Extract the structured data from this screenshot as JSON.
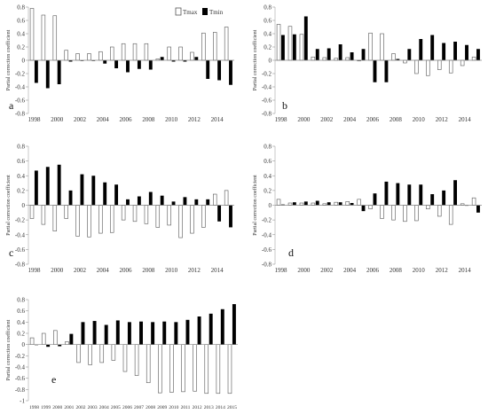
{
  "figure": {
    "legend": {
      "tmax": "Tmax",
      "tmin": "Tmin",
      "tmax_color": "#ffffff",
      "tmin_color": "#000000",
      "edge_color": "#555555"
    }
  },
  "chart_data": [
    {
      "type": "bar",
      "panel_label": "a",
      "ylabel": "Partial correction coefficient",
      "ylim": [
        -0.8,
        0.8
      ],
      "yticks": [
        -0.8,
        -0.6,
        -0.4,
        -0.2,
        0,
        0.2,
        0.4,
        0.6,
        0.8
      ],
      "categories": [
        "1998",
        "1999",
        "2000",
        "2001",
        "2002",
        "2003",
        "2004",
        "2005",
        "2006",
        "2007",
        "2008",
        "2009",
        "2010",
        "2011",
        "2012",
        "2013",
        "2014",
        "2015"
      ],
      "xtick_labels": [
        "1998",
        "",
        "2000",
        "",
        "2002",
        "",
        "2004",
        "",
        "2006",
        "",
        "2008",
        "",
        "2010",
        "",
        "2012",
        "",
        "2014",
        ""
      ],
      "series": [
        {
          "name": "Tmax",
          "values": [
            0.78,
            0.68,
            0.67,
            0.15,
            0.1,
            0.1,
            0.13,
            0.2,
            0.25,
            0.25,
            0.25,
            0.02,
            0.2,
            0.2,
            0.12,
            0.41,
            0.42,
            0.5
          ]
        },
        {
          "name": "Tmin",
          "values": [
            -0.34,
            -0.42,
            -0.36,
            -0.02,
            -0.01,
            -0.01,
            -0.05,
            -0.12,
            -0.18,
            -0.13,
            -0.14,
            0.05,
            -0.02,
            -0.02,
            0.05,
            -0.28,
            -0.3,
            -0.37
          ]
        }
      ]
    },
    {
      "type": "bar",
      "panel_label": "b",
      "ylabel": "Partial correction coefficient",
      "ylim": [
        -0.8,
        0.8
      ],
      "yticks": [
        -0.8,
        -0.6,
        -0.4,
        -0.2,
        0,
        0.2,
        0.4,
        0.6,
        0.8
      ],
      "categories": [
        "1998",
        "1999",
        "2000",
        "2001",
        "2002",
        "2003",
        "2004",
        "2005",
        "2006",
        "2007",
        "2008",
        "2009",
        "2010",
        "2011",
        "2012",
        "2013",
        "2014",
        "2015"
      ],
      "xtick_labels": [
        "1998",
        "",
        "2000",
        "",
        "2002",
        "",
        "2004",
        "",
        "2006",
        "",
        "2008",
        "",
        "2010",
        "",
        "2012",
        "",
        "2014",
        ""
      ],
      "series": [
        {
          "name": "Tmax",
          "values": [
            0.54,
            0.51,
            0.39,
            0.05,
            0.04,
            0.03,
            0.04,
            -0.01,
            0.41,
            0.4,
            0.1,
            -0.04,
            -0.2,
            -0.23,
            -0.14,
            -0.19,
            -0.08,
            0.05
          ]
        },
        {
          "name": "Tmin",
          "values": [
            0.38,
            0.39,
            0.66,
            0.17,
            0.18,
            0.24,
            0.12,
            0.17,
            -0.33,
            -0.33,
            0.02,
            0.17,
            0.32,
            0.38,
            0.26,
            0.28,
            0.23,
            0.17
          ]
        }
      ]
    },
    {
      "type": "bar",
      "panel_label": "c",
      "ylabel": "Partial correction coefficient",
      "ylim": [
        -0.8,
        0.8
      ],
      "yticks": [
        -0.8,
        -0.6,
        -0.4,
        -0.2,
        0,
        0.2,
        0.4,
        0.6,
        0.8
      ],
      "categories": [
        "1998",
        "1999",
        "2000",
        "2001",
        "2002",
        "2003",
        "2004",
        "2005",
        "2006",
        "2007",
        "2008",
        "2009",
        "2010",
        "2011",
        "2012",
        "2013",
        "2014",
        "2015"
      ],
      "xtick_labels": [
        "1998",
        "",
        "2000",
        "",
        "2002",
        "",
        "2004",
        "",
        "2006",
        "",
        "2008",
        "",
        "2010",
        "",
        "2012",
        "",
        "2014",
        ""
      ],
      "series": [
        {
          "name": "Tmax",
          "values": [
            -0.18,
            -0.26,
            -0.35,
            -0.18,
            -0.42,
            -0.43,
            -0.38,
            -0.37,
            -0.2,
            -0.22,
            -0.25,
            -0.3,
            -0.27,
            -0.44,
            -0.38,
            -0.3,
            0.15,
            0.2
          ]
        },
        {
          "name": "Tmin",
          "values": [
            0.47,
            0.52,
            0.55,
            0.2,
            0.42,
            0.4,
            0.31,
            0.28,
            0.08,
            0.12,
            0.18,
            0.13,
            0.05,
            0.11,
            0.08,
            0.08,
            -0.22,
            -0.3
          ]
        }
      ]
    },
    {
      "type": "bar",
      "panel_label": "d",
      "ylabel": "Partial correction coefficient",
      "ylim": [
        -0.8,
        0.8
      ],
      "yticks": [
        -0.8,
        -0.6,
        -0.4,
        -0.2,
        0,
        0.2,
        0.4,
        0.6,
        0.8
      ],
      "categories": [
        "1998",
        "1999",
        "2000",
        "2001",
        "2002",
        "2003",
        "2004",
        "2005",
        "2006",
        "2007",
        "2008",
        "2009",
        "2010",
        "2011",
        "2012",
        "2013",
        "2014",
        "2015"
      ],
      "xtick_labels": [
        "1998",
        "",
        "2000",
        "",
        "2002",
        "",
        "2004",
        "",
        "2006",
        "",
        "2008",
        "",
        "2010",
        "",
        "2012",
        "",
        "2014",
        ""
      ],
      "series": [
        {
          "name": "Tmax",
          "values": [
            0.08,
            0.03,
            0.03,
            0.03,
            0.02,
            0.04,
            0.05,
            0.08,
            -0.05,
            -0.18,
            -0.2,
            -0.22,
            -0.21,
            -0.05,
            -0.15,
            -0.26,
            0.02,
            0.1
          ]
        },
        {
          "name": "Tmin",
          "values": [
            0.01,
            0.04,
            0.05,
            0.06,
            0.04,
            0.04,
            0.03,
            -0.08,
            0.16,
            0.32,
            0.3,
            0.28,
            0.28,
            0.15,
            0.2,
            0.34,
            0.0,
            -0.1
          ]
        }
      ]
    },
    {
      "type": "bar",
      "panel_label": "e",
      "ylabel": "Partial correction coefficient",
      "ylim": [
        -1,
        0.8
      ],
      "yticks": [
        -1,
        -0.8,
        -0.6,
        -0.4,
        -0.2,
        0,
        0.2,
        0.4,
        0.6,
        0.8
      ],
      "categories": [
        "1998",
        "1999",
        "2000",
        "2001",
        "2002",
        "2003",
        "2004",
        "2005",
        "2006",
        "2007",
        "2008",
        "2009",
        "2010",
        "2011",
        "2012",
        "2013",
        "2014",
        "2015"
      ],
      "xtick_labels": [
        "1998",
        "1999",
        "2000",
        "2001",
        "2002",
        "2003",
        "2004",
        "2005",
        "2006",
        "2007",
        "2008",
        "2009",
        "2010",
        "2011",
        "2012",
        "2013",
        "2014",
        "2015"
      ],
      "series": [
        {
          "name": "Tmax",
          "values": [
            0.12,
            0.2,
            0.25,
            0.05,
            -0.32,
            -0.36,
            -0.32,
            -0.28,
            -0.48,
            -0.55,
            -0.68,
            -0.86,
            -0.85,
            -0.84,
            -0.83,
            -0.87,
            -0.87,
            -0.87
          ]
        },
        {
          "name": "Tmin",
          "values": [
            0.0,
            -0.04,
            -0.03,
            0.19,
            0.4,
            0.42,
            0.35,
            0.43,
            0.4,
            0.41,
            0.4,
            0.41,
            0.4,
            0.44,
            0.5,
            0.55,
            0.63,
            0.72
          ]
        }
      ]
    }
  ]
}
